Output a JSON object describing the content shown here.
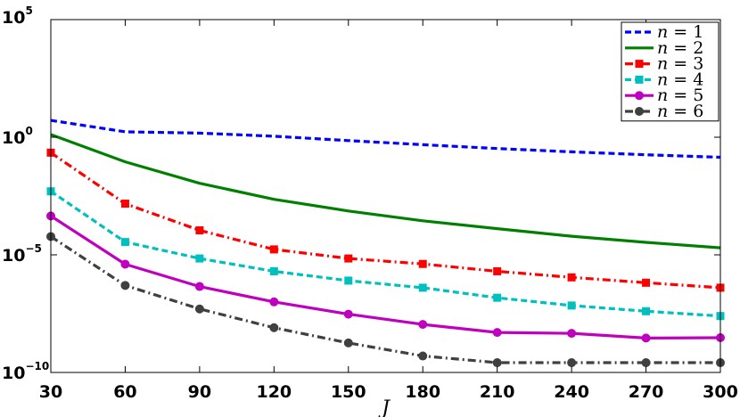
{
  "chart_data": {
    "type": "line",
    "x": [
      30,
      60,
      90,
      120,
      150,
      180,
      210,
      240,
      270,
      300
    ],
    "xlim": [
      30,
      300
    ],
    "ylim": [
      1e-10,
      100000.0
    ],
    "yscale": "log",
    "xlabel": "J",
    "ylabel": "",
    "xticks": [
      "30",
      "60",
      "90",
      "120",
      "150",
      "180",
      "210",
      "240",
      "270",
      "300"
    ],
    "yticks": [
      {
        "base": "10",
        "exp": "5"
      },
      {
        "base": "10",
        "exp": "0"
      },
      {
        "base": "10",
        "exp": "−5"
      },
      {
        "base": "10",
        "exp": "−10"
      }
    ],
    "grid": false,
    "legend_position": "top-right",
    "series": [
      {
        "name": "n = 1",
        "legend_var": "n",
        "legend_val": "= 1",
        "color": "#0000ff",
        "dash": "7,4",
        "marker": "none",
        "values": [
          5.2,
          1.7,
          1.5,
          1.1,
          0.72,
          0.48,
          0.33,
          0.24,
          0.18,
          0.14
        ]
      },
      {
        "name": "n = 2",
        "legend_var": "n",
        "legend_val": "= 2",
        "color": "#008000",
        "dash": "",
        "marker": "none",
        "values": [
          1.3,
          0.09,
          0.011,
          0.0023,
          0.00073,
          0.00028,
          0.00013,
          6.2e-05,
          3.4e-05,
          2e-05
        ]
      },
      {
        "name": "n = 3",
        "legend_var": "n",
        "legend_val": "= 3",
        "color": "#ff0000",
        "dash": "9,4,2,4",
        "marker": "square",
        "values": [
          0.22,
          0.0015,
          0.00011,
          1.7e-05,
          7e-06,
          4.1e-06,
          2e-06,
          1.1e-06,
          6.5e-07,
          4e-07
        ]
      },
      {
        "name": "n = 4",
        "legend_var": "n",
        "legend_val": "= 4",
        "color": "#00bfbf",
        "dash": "7,4",
        "marker": "square",
        "values": [
          0.005,
          3.5e-05,
          7e-06,
          2e-06,
          8e-07,
          4e-07,
          1.5e-07,
          7e-08,
          4e-08,
          2.5e-08
        ]
      },
      {
        "name": "n = 5",
        "legend_var": "n",
        "legend_val": "= 5",
        "color": "#bf00bf",
        "dash": "",
        "marker": "circle",
        "values": [
          0.00045,
          4e-06,
          4.5e-07,
          1e-07,
          3e-08,
          1.1e-08,
          5e-09,
          4.6e-09,
          2.9e-09,
          3e-09
        ]
      },
      {
        "name": "n = 6",
        "legend_var": "n",
        "legend_val": "= 6",
        "color": "#404040",
        "dash": "9,4,2,4",
        "marker": "circle",
        "values": [
          6e-05,
          5e-07,
          5e-08,
          8e-09,
          1.8e-09,
          5e-10,
          2.6e-10,
          2.6e-10,
          2.6e-10,
          2.6e-10
        ]
      }
    ]
  }
}
